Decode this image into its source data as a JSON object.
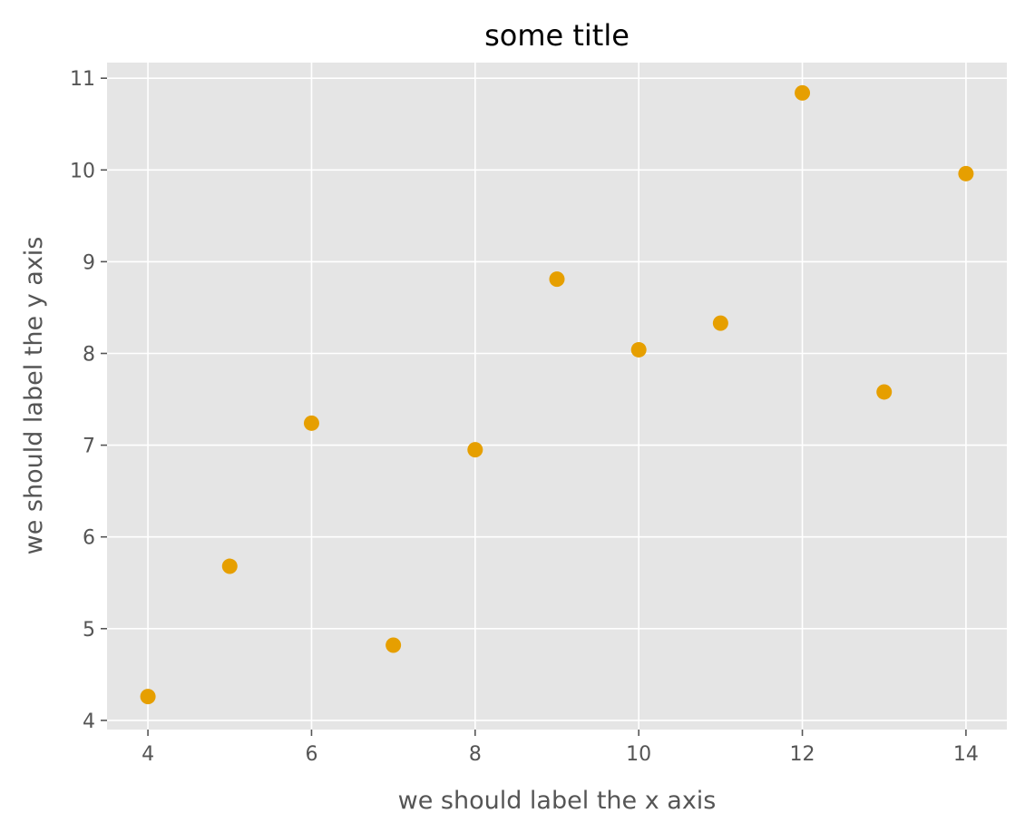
{
  "chart_data": {
    "type": "scatter",
    "title": "some title",
    "xlabel": "we should label the x axis",
    "ylabel": "we should label the y axis",
    "xlim": [
      3.5,
      14.5
    ],
    "ylim": [
      3.9,
      11.17
    ],
    "xticks": [
      4,
      6,
      8,
      10,
      12,
      14
    ],
    "yticks": [
      4,
      5,
      6,
      7,
      8,
      9,
      10,
      11
    ],
    "xtick_labels": [
      "4",
      "6",
      "8",
      "10",
      "12",
      "14"
    ],
    "ytick_labels": [
      "4",
      "5",
      "6",
      "7",
      "8",
      "9",
      "10",
      "11"
    ],
    "grid": true,
    "legend": "none",
    "style": "ggplot",
    "colors": {
      "plot_background": "#e5e5e5",
      "grid": "#ffffff",
      "marker": "#e69f00",
      "tick_text": "#555555",
      "title_text": "#000000"
    },
    "series": [
      {
        "x": [
          4,
          5,
          6,
          7,
          8,
          9,
          10,
          11,
          12,
          13,
          14
        ],
        "y": [
          4.26,
          5.68,
          7.24,
          4.82,
          6.95,
          8.81,
          8.04,
          8.33,
          10.84,
          7.58,
          9.96
        ]
      }
    ]
  }
}
